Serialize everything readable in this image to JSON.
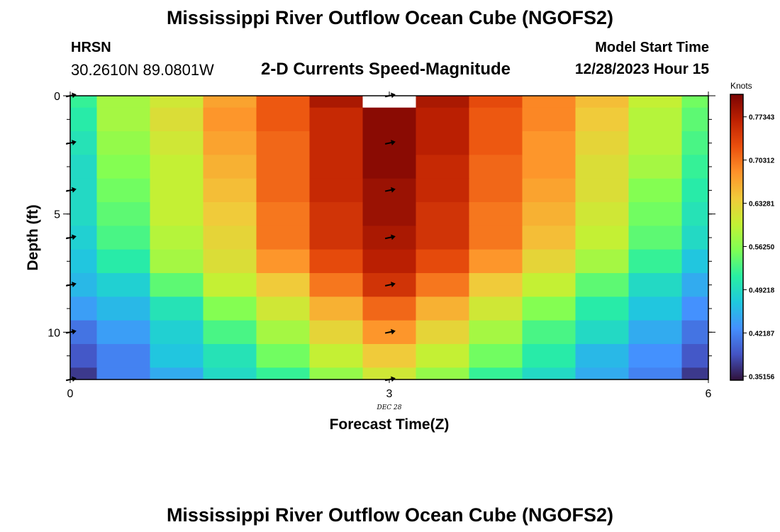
{
  "header": {
    "title": "Mississippi River Outflow Ocean Cube (NGOFS2)",
    "station": "HRSN",
    "coords": "30.2610N  89.0801W",
    "subtitle": "2-D Currents Speed-Magnitude",
    "model_label": "Model Start Time",
    "model_time": "12/28/2023 Hour 15"
  },
  "footer": {
    "title": "Mississippi River Outflow Ocean Cube (NGOFS2)"
  },
  "chart_data": {
    "type": "heatmap",
    "xlabel": "Forecast Time(Z)",
    "ylabel": "Depth (ft)",
    "x_date_label": "DEC 28",
    "xlim": [
      0,
      6
    ],
    "ylim": [
      0,
      12
    ],
    "x_ticks": [
      "0",
      "3",
      "6"
    ],
    "y_ticks": [
      "0",
      "5",
      "10"
    ],
    "x_centers": [
      0,
      0.5,
      1,
      1.5,
      2,
      2.5,
      3,
      3.5,
      4,
      4.5,
      5,
      5.5,
      6
    ],
    "depth_centers": [
      0,
      1,
      2,
      3,
      4,
      5,
      6,
      7,
      8,
      9,
      10,
      11,
      12
    ],
    "values": [
      [
        0.52,
        0.58,
        0.61,
        0.67,
        0.72,
        0.78,
        null,
        0.78,
        0.73,
        0.69,
        0.65,
        0.6,
        0.55
      ],
      [
        0.51,
        0.58,
        0.62,
        0.68,
        0.72,
        0.76,
        0.8,
        0.77,
        0.72,
        0.69,
        0.64,
        0.59,
        0.54
      ],
      [
        0.5,
        0.57,
        0.61,
        0.67,
        0.71,
        0.76,
        0.8,
        0.77,
        0.72,
        0.68,
        0.63,
        0.59,
        0.53
      ],
      [
        0.49,
        0.56,
        0.6,
        0.66,
        0.71,
        0.76,
        0.8,
        0.76,
        0.71,
        0.68,
        0.62,
        0.58,
        0.52
      ],
      [
        0.49,
        0.55,
        0.6,
        0.65,
        0.71,
        0.76,
        0.79,
        0.76,
        0.71,
        0.67,
        0.62,
        0.56,
        0.51
      ],
      [
        0.49,
        0.54,
        0.6,
        0.64,
        0.7,
        0.75,
        0.79,
        0.75,
        0.7,
        0.66,
        0.61,
        0.55,
        0.5
      ],
      [
        0.48,
        0.53,
        0.59,
        0.63,
        0.7,
        0.75,
        0.78,
        0.75,
        0.7,
        0.65,
        0.6,
        0.54,
        0.49
      ],
      [
        0.47,
        0.51,
        0.58,
        0.62,
        0.68,
        0.73,
        0.77,
        0.73,
        0.68,
        0.63,
        0.58,
        0.52,
        0.47
      ],
      [
        0.46,
        0.48,
        0.54,
        0.6,
        0.64,
        0.7,
        0.75,
        0.7,
        0.64,
        0.6,
        0.54,
        0.49,
        0.45
      ],
      [
        0.44,
        0.46,
        0.5,
        0.56,
        0.61,
        0.66,
        0.71,
        0.66,
        0.61,
        0.56,
        0.51,
        0.47,
        0.43
      ],
      [
        0.41,
        0.44,
        0.48,
        0.53,
        0.58,
        0.63,
        0.68,
        0.63,
        0.58,
        0.53,
        0.49,
        0.45,
        0.41
      ],
      [
        0.39,
        0.42,
        0.47,
        0.5,
        0.55,
        0.6,
        0.64,
        0.6,
        0.55,
        0.51,
        0.46,
        0.43,
        0.39
      ],
      [
        0.37,
        0.42,
        0.45,
        0.49,
        0.52,
        0.57,
        0.61,
        0.57,
        0.52,
        0.49,
        0.45,
        0.42,
        0.37
      ]
    ],
    "vectors": [
      {
        "x": 0,
        "depth": 0
      },
      {
        "x": 0,
        "depth": 2
      },
      {
        "x": 0,
        "depth": 4
      },
      {
        "x": 0,
        "depth": 6
      },
      {
        "x": 0,
        "depth": 8
      },
      {
        "x": 0,
        "depth": 10
      },
      {
        "x": 0,
        "depth": 12
      },
      {
        "x": 3,
        "depth": 0
      },
      {
        "x": 3,
        "depth": 2
      },
      {
        "x": 3,
        "depth": 4
      },
      {
        "x": 3,
        "depth": 6
      },
      {
        "x": 3,
        "depth": 8
      },
      {
        "x": 3,
        "depth": 10
      },
      {
        "x": 3,
        "depth": 12
      }
    ],
    "colorbar": {
      "label": "Knots",
      "min": 0.345,
      "max": 0.81,
      "ticks": [
        "0.77343",
        "0.70312",
        "0.63281",
        "0.56250",
        "0.49218",
        "0.42187",
        "0.35156"
      ],
      "tick_values": [
        0.77343,
        0.70312,
        0.63281,
        0.5625,
        0.49218,
        0.42187,
        0.35156
      ],
      "colors": [
        "#30123b",
        "#4454c4",
        "#4490fe",
        "#1fc8de",
        "#29efa2",
        "#7eff55",
        "#c3f134",
        "#f1ca3a",
        "#fe922a",
        "#ea4f0d",
        "#be2102",
        "#7a0403"
      ]
    }
  }
}
